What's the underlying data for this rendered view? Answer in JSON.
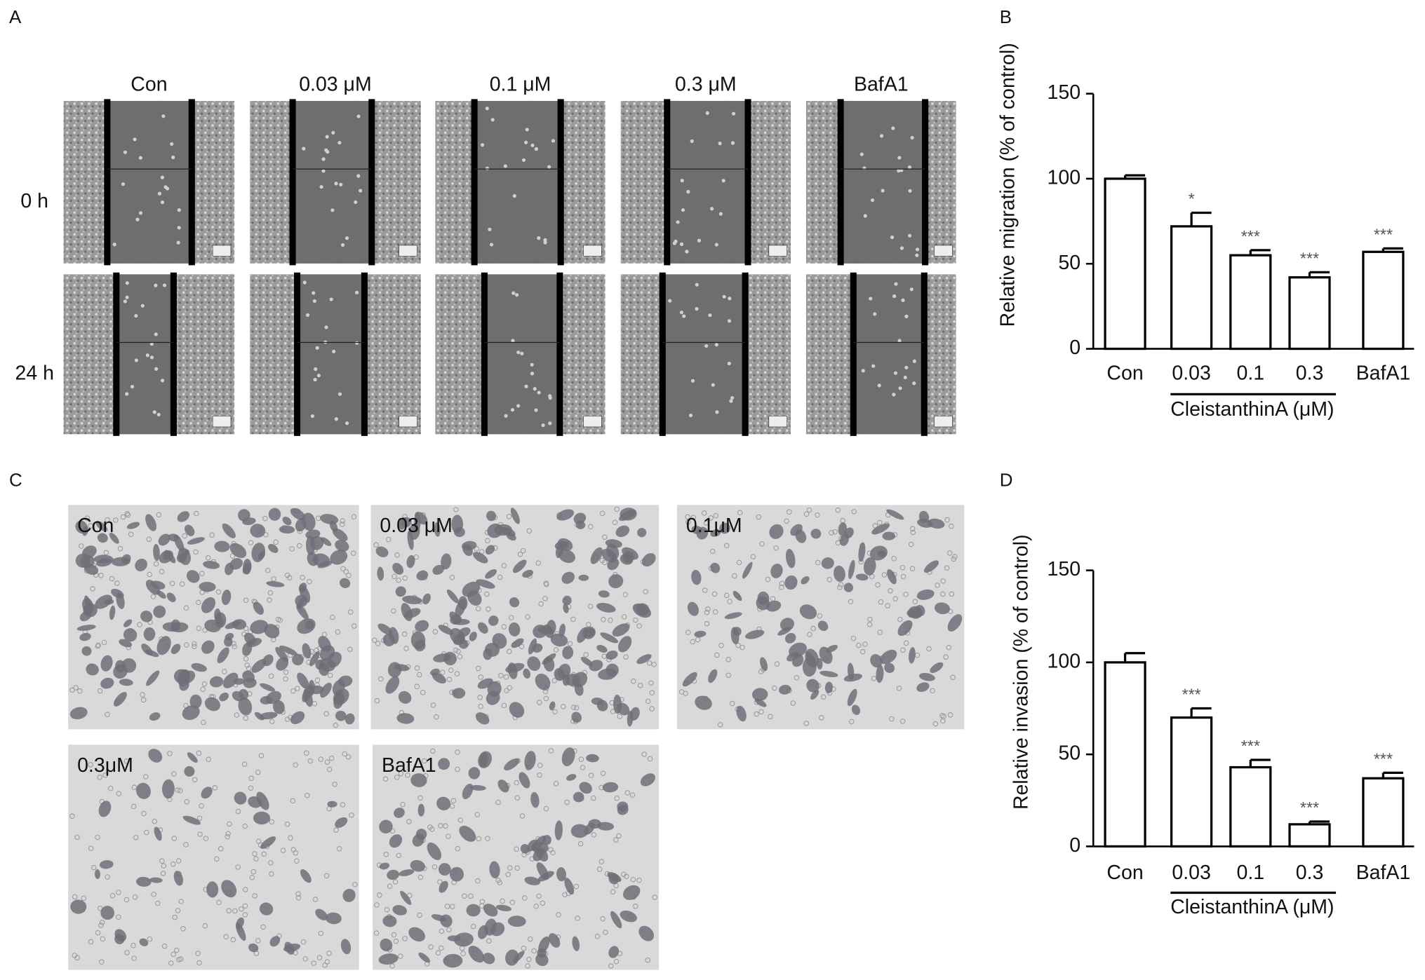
{
  "figure": {
    "panel_labels": [
      "A",
      "B",
      "C",
      "D"
    ],
    "wound_healing": {
      "columns": [
        "Con",
        "0.03 μM",
        "0.1 μM",
        "0.3 μM",
        "BafA1"
      ],
      "rows": [
        "0 h",
        "24 h"
      ]
    },
    "invasion": {
      "labels": [
        "Con",
        "0.03 μM",
        "0.1μM",
        "0.3μM",
        "BafA1"
      ]
    }
  },
  "chart_data": [
    {
      "type": "bar",
      "ylabel": "Relative migration (% of control)",
      "xlabel": "CleistanthinA (μM)",
      "categories": [
        "Con",
        "0.03",
        "0.1",
        "0.3",
        "BafA1"
      ],
      "values": [
        100,
        72,
        55,
        42,
        57
      ],
      "errors": [
        2,
        8,
        3,
        3,
        2
      ],
      "annotations": [
        null,
        "*",
        "***",
        "***",
        "***"
      ],
      "color": "#ffffff",
      "ylim": [
        0,
        150
      ],
      "yticks": [
        0,
        50,
        100,
        150
      ]
    },
    {
      "type": "bar",
      "ylabel": "Relative invasion (% of control)",
      "xlabel": "CleistanthinA (μM)",
      "categories": [
        "Con",
        "0.03",
        "0.1",
        "0.3",
        "BafA1"
      ],
      "values": [
        100,
        70,
        43,
        12,
        37
      ],
      "errors": [
        5,
        5,
        4,
        1.5,
        3
      ],
      "annotations": [
        null,
        "***",
        "***",
        "***",
        "***"
      ],
      "color": "#ffffff",
      "ylim": [
        0,
        150
      ],
      "yticks": [
        0,
        50,
        100,
        150
      ]
    }
  ]
}
